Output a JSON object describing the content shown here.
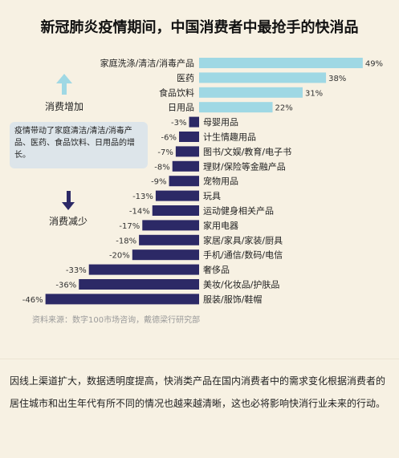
{
  "title": "新冠肺炎疫情期间，中国消费者中最抢手的快消品",
  "annotations": {
    "increase_label": "消费增加",
    "decrease_label": "消费减少",
    "note": "疫情带动了家庭清洁/清洁/消毒产品、医药、食品饮料、日用品的增长。"
  },
  "source": "资料来源：数字100市场咨询，戴德梁行研究部",
  "paragraph": "因线上渠道扩大，数据透明度提高，快消类产品在国内消费者中的需求变化根据消费者的居住城市和出生年代有所不同的情况也越来越清晰，这也必将影响快消行业未来的行动。",
  "colors": {
    "increase": "#9fd8e4",
    "decrease": "#2c2966",
    "note_bg": "#dde5ea",
    "background": "#f7f1e3"
  },
  "chart_data": {
    "type": "bar",
    "orientation": "horizontal",
    "baseline": 0,
    "categories": [
      "家庭洗涤/清洁/消毒产品",
      "医药",
      "食品饮料",
      "日用品",
      "母婴用品",
      "计生情趣用品",
      "图书/文娱/教育/电子书",
      "理财/保险等金融产品",
      "宠物用品",
      "玩具",
      "运动健身相关产品",
      "家用电器",
      "家居/家具/家装/厨具",
      "手机/通信/数码/电信",
      "奢侈品",
      "美妆/化妆品/护肤品",
      "服装/服饰/鞋帽"
    ],
    "values": [
      49,
      38,
      31,
      22,
      -3,
      -6,
      -7,
      -8,
      -9,
      -13,
      -14,
      -17,
      -18,
      -20,
      -33,
      -36,
      -46
    ],
    "value_labels": [
      "49%",
      "38%",
      "31%",
      "22%",
      "-3%",
      "-6%",
      "-7%",
      "-8%",
      "-9%",
      "-13%",
      "-14%",
      "-17%",
      "-18%",
      "-20%",
      "-33%",
      "-36%",
      "-46%"
    ],
    "unit": "%"
  }
}
